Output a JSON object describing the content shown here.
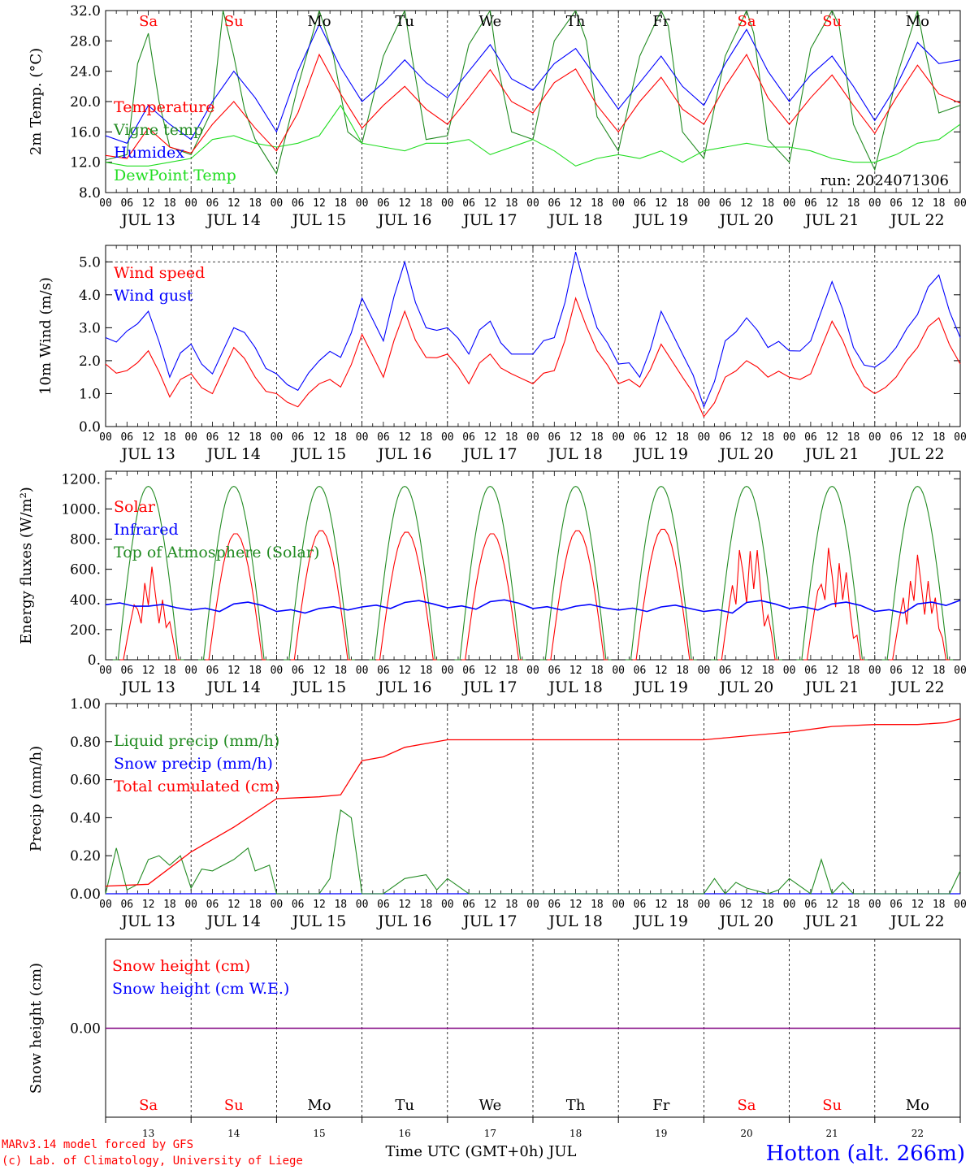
{
  "days": [
    "Sa",
    "Su",
    "Mo",
    "Tu",
    "We",
    "Th",
    "Fr",
    "Sa",
    "Su",
    "Mo"
  ],
  "weekend_flags": [
    true,
    true,
    false,
    false,
    false,
    false,
    false,
    true,
    true,
    false
  ],
  "date_labels": [
    "JUL 13",
    "JUL 14",
    "JUL 15",
    "JUL 16",
    "JUL 17",
    "JUL 18",
    "JUL 19",
    "JUL 20",
    "JUL 21",
    "JUL 22"
  ],
  "bottom_dates": [
    "13",
    "14",
    "15",
    "16",
    "17",
    "18",
    "19",
    "20",
    "21",
    "22"
  ],
  "hour_ticks": [
    "00",
    "06",
    "12",
    "18"
  ],
  "hour_end": "00",
  "run_label": "run: 2024071306",
  "footer": {
    "credit1": "MARv3.14 model forced by GFS",
    "credit2": "(c) Lab. of Climatology, University of Liege",
    "xaxis": "Time UTC (GMT+0h) JUL",
    "station": "Hotton (alt. 266m)"
  },
  "colors": {
    "red": "#ff0000",
    "green": "#228b22",
    "blue": "#0000ff",
    "lime": "#22dd22",
    "purple": "#800080",
    "black": "#000000"
  },
  "chart_data": [
    {
      "type": "line",
      "ylabel": "2m Temp. (°C)",
      "ylim": [
        8,
        32
      ],
      "yticks": [
        "8.0",
        "12.0",
        "16.0",
        "20.0",
        "24.0",
        "28.0",
        "32.0"
      ],
      "x_unit": "hours since Jul 13 00 UTC",
      "series": [
        {
          "name": "Temperature",
          "color": "red",
          "x": [
            0,
            6,
            12,
            18,
            24,
            30,
            36,
            42,
            48,
            54,
            60,
            66,
            72,
            78,
            84,
            90,
            96,
            102,
            108,
            114,
            120,
            126,
            132,
            138,
            144,
            150,
            156,
            162,
            168,
            174,
            180,
            186,
            192,
            198,
            204,
            210,
            216,
            222,
            228,
            234,
            240
          ],
          "values": [
            12.9,
            12.5,
            16.5,
            14.0,
            13.2,
            17.0,
            20.0,
            16.5,
            13.5,
            18.5,
            26.2,
            21.0,
            16.5,
            19.5,
            22.0,
            19.0,
            17.0,
            20.5,
            24.2,
            20.0,
            18.5,
            22.5,
            24.3,
            19.5,
            16.0,
            20.0,
            23.2,
            19.0,
            17.0,
            22.0,
            26.2,
            20.5,
            17.0,
            20.5,
            23.5,
            19.5,
            15.8,
            20.5,
            24.8,
            21.0,
            19.8
          ]
        },
        {
          "name": "Vigne temp",
          "color": "green",
          "x": [
            0,
            6,
            9,
            12,
            15,
            18,
            24,
            30,
            33,
            36,
            39,
            42,
            48,
            54,
            60,
            64,
            68,
            72,
            78,
            84,
            86,
            90,
            96,
            102,
            108,
            110,
            114,
            120,
            126,
            132,
            135,
            138,
            144,
            150,
            156,
            158,
            162,
            168,
            174,
            180,
            182,
            186,
            192,
            198,
            204,
            206,
            210,
            216,
            222,
            228,
            230,
            234,
            240
          ],
          "values": [
            12.3,
            13.0,
            25.0,
            29.0,
            20.0,
            14.0,
            13.0,
            19.0,
            32.0,
            26.0,
            19.0,
            15.0,
            10.5,
            22.0,
            32.0,
            26.0,
            16.0,
            14.5,
            26.0,
            32.0,
            26.0,
            15.0,
            15.5,
            27.5,
            32.0,
            25.0,
            16.0,
            15.0,
            28.0,
            32.0,
            28.0,
            18.0,
            13.5,
            26.0,
            32.0,
            30.0,
            16.0,
            12.5,
            26.0,
            32.0,
            29.0,
            15.0,
            12.0,
            27.0,
            32.0,
            30.0,
            17.0,
            11.0,
            23.0,
            32.0,
            27.0,
            18.5,
            19.5
          ]
        },
        {
          "name": "Humidex",
          "color": "blue",
          "x": [
            0,
            6,
            12,
            18,
            24,
            30,
            36,
            42,
            48,
            54,
            60,
            66,
            72,
            78,
            84,
            90,
            96,
            102,
            108,
            114,
            120,
            126,
            132,
            138,
            144,
            150,
            156,
            162,
            168,
            174,
            180,
            186,
            192,
            198,
            204,
            210,
            216,
            222,
            228,
            234,
            240
          ],
          "values": [
            15.5,
            14.5,
            19.5,
            17.0,
            15.0,
            20.0,
            24.0,
            20.5,
            16.0,
            24.0,
            30.2,
            24.5,
            20.0,
            22.5,
            25.5,
            22.5,
            20.5,
            24.0,
            27.5,
            23.0,
            21.5,
            25.0,
            27.0,
            23.0,
            19.0,
            22.5,
            26.0,
            22.0,
            19.5,
            25.0,
            29.5,
            24.0,
            20.0,
            23.5,
            26.0,
            22.0,
            17.5,
            22.0,
            27.8,
            25.0,
            25.5
          ]
        },
        {
          "name": "DewPoint Temp",
          "color": "lime",
          "x": [
            0,
            6,
            12,
            18,
            24,
            30,
            36,
            42,
            48,
            54,
            60,
            66,
            72,
            78,
            84,
            90,
            96,
            102,
            108,
            114,
            120,
            126,
            132,
            138,
            144,
            150,
            156,
            162,
            168,
            174,
            180,
            186,
            192,
            198,
            204,
            210,
            216,
            222,
            228,
            234,
            240
          ],
          "values": [
            12.0,
            11.5,
            11.5,
            12.0,
            12.5,
            15.0,
            15.5,
            14.5,
            14.0,
            14.5,
            15.5,
            19.5,
            14.5,
            14.0,
            13.5,
            14.5,
            14.5,
            15.0,
            13.0,
            14.0,
            15.0,
            13.5,
            11.5,
            12.5,
            13.0,
            12.5,
            13.5,
            12.0,
            13.5,
            14.0,
            14.5,
            14.0,
            14.0,
            13.5,
            12.5,
            12.0,
            12.0,
            13.0,
            14.5,
            15.0,
            17.0
          ]
        }
      ],
      "legend": [
        "Temperature",
        "Vigne temp",
        "Humidex",
        "DewPoint Temp"
      ],
      "legend_position": "top-left"
    },
    {
      "type": "line",
      "ylabel": "10m Wind (m/s)",
      "ylim": [
        0,
        5.5
      ],
      "yticks": [
        "0.0",
        "1.0",
        "2.0",
        "3.0",
        "4.0",
        "5.0"
      ],
      "ref_line": 5.0,
      "series": [
        {
          "name": "Wind speed",
          "color": "red",
          "x": [
            0,
            6,
            12,
            18,
            24,
            30,
            36,
            42,
            48,
            54,
            60,
            66,
            72,
            78,
            84,
            90,
            96,
            102,
            108,
            114,
            120,
            126,
            132,
            138,
            144,
            150,
            156,
            162,
            168,
            174,
            180,
            186,
            192,
            198,
            204,
            210,
            216,
            222,
            228,
            234,
            240
          ],
          "values": [
            1.9,
            1.7,
            2.3,
            0.9,
            1.6,
            1.0,
            2.4,
            1.5,
            1.0,
            0.6,
            1.3,
            1.2,
            2.8,
            1.5,
            3.5,
            2.1,
            2.2,
            1.3,
            2.2,
            1.6,
            1.3,
            1.7,
            3.9,
            2.3,
            1.3,
            1.2,
            2.5,
            1.5,
            0.3,
            1.5,
            2.0,
            1.5,
            1.5,
            1.6,
            3.2,
            1.8,
            1.0,
            1.5,
            2.4,
            3.3,
            1.9
          ]
        },
        {
          "name": "Wind gust",
          "color": "blue",
          "x": [
            0,
            6,
            12,
            18,
            24,
            30,
            36,
            42,
            48,
            54,
            60,
            66,
            72,
            78,
            84,
            90,
            96,
            102,
            108,
            114,
            120,
            126,
            132,
            138,
            144,
            150,
            156,
            162,
            168,
            174,
            180,
            186,
            192,
            198,
            204,
            210,
            216,
            222,
            228,
            234,
            240
          ],
          "values": [
            2.7,
            2.9,
            3.5,
            1.5,
            2.5,
            1.6,
            3.0,
            2.4,
            1.6,
            1.1,
            2.0,
            2.1,
            3.9,
            2.6,
            5.0,
            3.0,
            3.0,
            2.2,
            3.2,
            2.2,
            2.2,
            2.7,
            5.3,
            3.0,
            1.9,
            1.5,
            3.5,
            2.2,
            0.6,
            2.6,
            3.3,
            2.4,
            2.3,
            2.6,
            4.4,
            2.4,
            1.8,
            2.4,
            3.4,
            4.6,
            2.7
          ]
        }
      ],
      "legend": [
        "Wind speed",
        "Wind gust"
      ],
      "legend_position": "top-left"
    },
    {
      "type": "line",
      "ylabel": "Energy fluxes (W/m²)",
      "ylim": [
        0,
        1250
      ],
      "yticks": [
        "0.",
        "200.",
        "400.",
        "600.",
        "800.",
        "1000.",
        "1200."
      ],
      "series": [
        {
          "name": "Solar",
          "color": "red",
          "daily_peaks": [
            620,
            840,
            860,
            850,
            840,
            860,
            870,
            840,
            780,
            700
          ]
        },
        {
          "name": "Infrared",
          "color": "blue",
          "x": [
            0,
            12,
            24,
            36,
            48,
            60,
            72,
            84,
            96,
            108,
            120,
            132,
            144,
            156,
            168,
            180,
            192,
            204,
            216,
            228,
            240
          ],
          "values": [
            365,
            355,
            330,
            370,
            320,
            340,
            350,
            380,
            345,
            385,
            340,
            355,
            330,
            350,
            320,
            380,
            340,
            370,
            320,
            370,
            395
          ]
        },
        {
          "name": "Top of Atmosphere (Solar)",
          "color": "green",
          "daily_peak": 1150
        }
      ],
      "legend": [
        "Solar",
        "Infrared",
        "Top of Atmosphere (Solar)"
      ],
      "legend_position": "top-left"
    },
    {
      "type": "line",
      "ylabel": "Precip (mm/h)",
      "ylim": [
        0,
        1.0
      ],
      "yticks": [
        "0.00",
        "0.20",
        "0.40",
        "0.60",
        "0.80",
        "1.00"
      ],
      "series": [
        {
          "name": "Liquid precip (mm/h)",
          "color": "green",
          "x": [
            0,
            3,
            6,
            9,
            12,
            15,
            18,
            21,
            24,
            27,
            30,
            36,
            40,
            42,
            46,
            48,
            54,
            60,
            63,
            66,
            69,
            72,
            78,
            84,
            90,
            93,
            96,
            102,
            108,
            120,
            132,
            144,
            156,
            168,
            171,
            174,
            177,
            180,
            186,
            189,
            192,
            198,
            201,
            204,
            207,
            210,
            216,
            228,
            237,
            240
          ],
          "values": [
            0.0,
            0.24,
            0.02,
            0.05,
            0.18,
            0.2,
            0.15,
            0.2,
            0.03,
            0.13,
            0.12,
            0.18,
            0.24,
            0.12,
            0.15,
            0.0,
            0.0,
            0.0,
            0.08,
            0.44,
            0.4,
            0.0,
            0.0,
            0.08,
            0.1,
            0.02,
            0.08,
            0.0,
            0.0,
            0.0,
            0.0,
            0.0,
            0.0,
            0.0,
            0.08,
            0.0,
            0.06,
            0.03,
            0.0,
            0.02,
            0.08,
            0.0,
            0.18,
            0.0,
            0.06,
            0.0,
            0.0,
            0.0,
            0.0,
            0.12
          ]
        },
        {
          "name": "Snow precip (mm/h)",
          "color": "blue",
          "x": [
            0,
            240
          ],
          "values": [
            0,
            0
          ]
        },
        {
          "name": "Total cumulated (cm)",
          "color": "red",
          "x": [
            0,
            12,
            24,
            36,
            48,
            60,
            66,
            72,
            78,
            84,
            90,
            96,
            108,
            120,
            132,
            144,
            156,
            168,
            174,
            186,
            192,
            204,
            216,
            228,
            236,
            240
          ],
          "values": [
            0.04,
            0.05,
            0.22,
            0.35,
            0.5,
            0.51,
            0.52,
            0.7,
            0.72,
            0.77,
            0.79,
            0.81,
            0.81,
            0.81,
            0.81,
            0.81,
            0.81,
            0.81,
            0.82,
            0.84,
            0.85,
            0.88,
            0.89,
            0.89,
            0.9,
            0.92
          ]
        }
      ],
      "legend": [
        "Liquid precip (mm/h)",
        "Snow precip (mm/h)",
        "Total cumulated (cm)"
      ],
      "legend_position": "top-left"
    },
    {
      "type": "line",
      "ylabel": "Snow height (cm)",
      "ylim": [
        -1,
        1
      ],
      "yticks": [
        "0.00"
      ],
      "series": [
        {
          "name": "Snow height (cm)",
          "color": "red",
          "x": [
            0,
            240
          ],
          "values": [
            0,
            0
          ]
        },
        {
          "name": "Snow height (cm W.E.)",
          "color": "blue",
          "x": [
            0,
            240
          ],
          "values": [
            0,
            0
          ]
        }
      ],
      "legend": [
        "Snow height (cm)",
        "Snow height (cm W.E.)"
      ],
      "legend_position": "top-left"
    }
  ]
}
